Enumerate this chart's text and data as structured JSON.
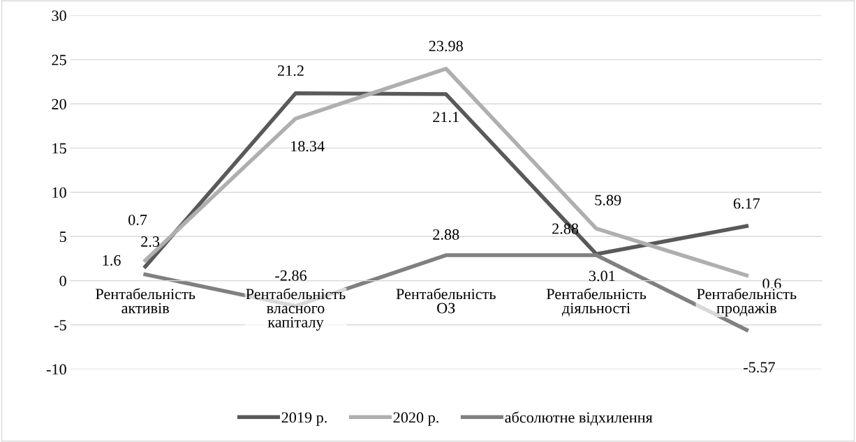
{
  "chart_data": {
    "type": "line",
    "categories": [
      "Рентабельність\nактивів",
      "Рентабельність\nвласного\nкапіталу",
      "Рентабельність\nОЗ",
      "Рентабельність\nдіяльності",
      "Рентабельність\nпродажів"
    ],
    "series": [
      {
        "name": "2019 р.",
        "color": "#595959",
        "values": [
          1.6,
          21.2,
          21.1,
          3.01,
          6.17
        ]
      },
      {
        "name": "2020 р.",
        "color": "#afafaf",
        "values": [
          2.3,
          18.34,
          23.98,
          5.89,
          0.6
        ]
      },
      {
        "name": "абсолютне відхилення",
        "color": "#808080",
        "values": [
          0.7,
          -2.86,
          2.88,
          2.88,
          -5.57
        ]
      }
    ],
    "ylim": [
      -10,
      30
    ],
    "yticks": [
      -10,
      -5,
      0,
      5,
      10,
      15,
      20,
      25,
      30
    ],
    "grid": "y",
    "legend": "bottom",
    "data_labels": true,
    "marker": "none",
    "line_style": "solid"
  }
}
